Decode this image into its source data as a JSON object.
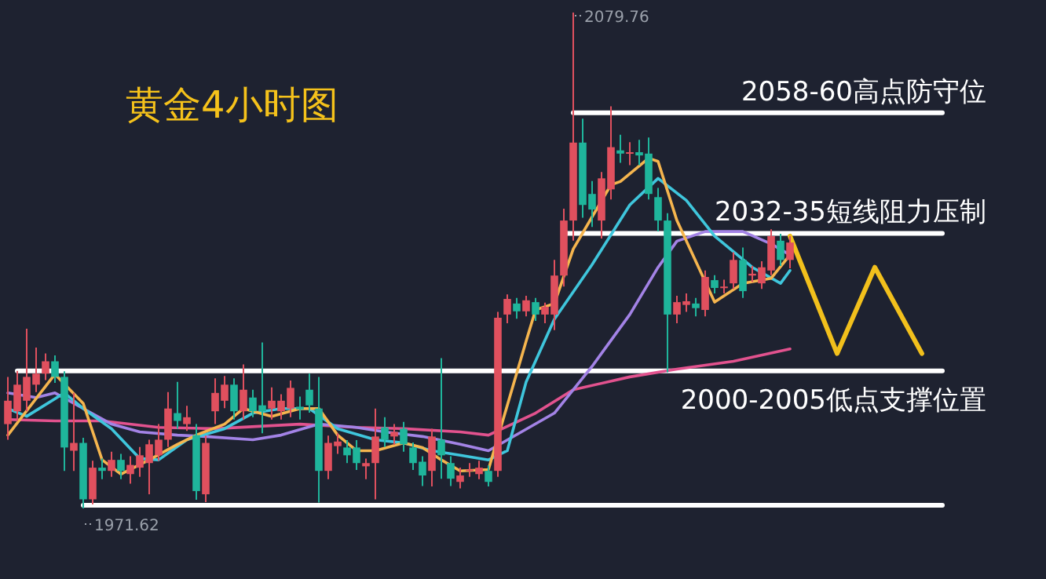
{
  "chart_data": {
    "type": "candlestick",
    "title": "黄金4小时图",
    "categories": [
      null,
      null,
      null,
      null,
      null,
      null,
      null,
      null,
      null,
      null,
      null,
      null,
      null,
      null,
      null,
      null,
      null,
      null,
      null,
      null,
      null,
      null,
      null,
      null,
      null,
      null,
      null,
      null,
      null,
      null,
      null,
      null,
      null,
      null,
      null,
      null,
      null,
      null,
      null,
      null,
      null,
      null,
      null,
      null,
      null,
      null,
      null,
      null,
      null,
      null,
      null,
      null,
      null,
      null,
      null,
      null,
      null,
      null,
      null,
      null,
      null,
      null,
      null,
      null,
      null,
      null,
      null,
      null,
      null,
      null,
      null,
      null,
      null,
      null,
      null,
      null,
      null,
      null,
      null,
      null,
      null,
      null,
      null,
      null,
      null,
      null,
      null,
      null,
      null,
      null,
      null,
      null,
      null,
      null,
      null,
      null,
      null,
      null
    ],
    "ohlc": [
      [
        1990.0,
        2000.3,
        1986.6,
        1995.1
      ],
      [
        1992.8,
        2001.6,
        1990.7,
        1998.6
      ],
      [
        1995.1,
        2010.8,
        1992.8,
        2000.3
      ],
      [
        1998.6,
        2006.7,
        1997.0,
        2001.0
      ],
      [
        2001.0,
        2005.4,
        1999.6,
        2003.7
      ],
      [
        2003.7,
        2005.0,
        1999.0,
        2000.3
      ],
      [
        2000.3,
        2001.5,
        1979.8,
        1984.9
      ],
      [
        1984.2,
        1996.8,
        1979.8,
        1985.9
      ],
      [
        1985.9,
        1987.0,
        1971.62,
        1973.6
      ],
      [
        1973.6,
        1982.0,
        1972.5,
        1980.5
      ],
      [
        1980.5,
        1982.5,
        1978.0,
        1979.8
      ],
      [
        1979.8,
        1984.0,
        1978.5,
        1982.2
      ],
      [
        1982.2,
        1983.5,
        1978.0,
        1979.8
      ],
      [
        1979.1,
        1983.0,
        1977.0,
        1981.1
      ],
      [
        1980.5,
        1985.0,
        1978.5,
        1983.2
      ],
      [
        1981.5,
        1986.6,
        1974.7,
        1985.6
      ],
      [
        1983.2,
        1990.0,
        1982.0,
        1986.6
      ],
      [
        1986.6,
        1997.0,
        1985.0,
        1993.4
      ],
      [
        1992.4,
        1999.2,
        1989.0,
        1990.7
      ],
      [
        1990.0,
        1994.0,
        1988.5,
        1991.5
      ],
      [
        1987.6,
        1990.0,
        1973.5,
        1975.4
      ],
      [
        1974.7,
        1987.5,
        1973.0,
        1985.9
      ],
      [
        1992.8,
        2000.0,
        1990.0,
        1996.8
      ],
      [
        1995.1,
        2000.5,
        1993.5,
        1998.6
      ],
      [
        1998.6,
        2000.0,
        1991.0,
        1992.8
      ],
      [
        1992.8,
        2003.0,
        1991.0,
        1997.5
      ],
      [
        1995.8,
        1997.5,
        1991.5,
        1992.8
      ],
      [
        1994.1,
        2007.8,
        1988.0,
        1992.8
      ],
      [
        1993.4,
        1998.0,
        1991.0,
        1995.1
      ],
      [
        1992.8,
        1996.5,
        1991.0,
        1995.1
      ],
      [
        1993.4,
        1999.5,
        1991.5,
        1997.9
      ],
      [
        1993.8,
        1996.0,
        1991.0,
        1993.2
      ],
      [
        1997.5,
        2001.0,
        1992.5,
        1994.1
      ],
      [
        1993.4,
        2000.3,
        1972.9,
        1979.8
      ],
      [
        1979.8,
        1987.5,
        1978.0,
        1985.9
      ],
      [
        1985.2,
        1988.0,
        1983.5,
        1986.2
      ],
      [
        1984.9,
        1986.5,
        1981.5,
        1983.2
      ],
      [
        1984.9,
        1986.5,
        1980.0,
        1981.5
      ],
      [
        1980.8,
        1982.5,
        1978.0,
        1981.5
      ],
      [
        1981.5,
        1993.4,
        1973.6,
        1987.3
      ],
      [
        1989.3,
        1991.5,
        1985.0,
        1986.6
      ],
      [
        1987.3,
        1990.0,
        1985.5,
        1988.3
      ],
      [
        1989.0,
        1990.5,
        1984.0,
        1985.6
      ],
      [
        1984.9,
        1986.0,
        1980.0,
        1981.5
      ],
      [
        1981.8,
        1983.0,
        1976.5,
        1978.8
      ],
      [
        1979.8,
        1989.0,
        1976.4,
        1987.3
      ],
      [
        1986.6,
        2004.4,
        1978.1,
        1983.2
      ],
      [
        1981.5,
        1983.0,
        1976.5,
        1978.1
      ],
      [
        1977.4,
        1980.5,
        1976.0,
        1978.8
      ],
      [
        1979.8,
        1981.5,
        1978.5,
        1980.1
      ],
      [
        1979.1,
        1982.0,
        1978.0,
        1980.5
      ],
      [
        1979.8,
        1981.0,
        1976.4,
        1977.4
      ],
      [
        1979.8,
        2014.5,
        1978.5,
        2013.2
      ],
      [
        2013.9,
        2018.3,
        2012.0,
        2017.3
      ],
      [
        2016.3,
        2017.5,
        2013.0,
        2014.6
      ],
      [
        2014.6,
        2018.0,
        2013.5,
        2017.0
      ],
      [
        2016.6,
        2017.5,
        2012.5,
        2013.9
      ],
      [
        2013.9,
        2016.5,
        2012.0,
        2015.6
      ],
      [
        2013.9,
        2025.8,
        2010.5,
        2022.4
      ],
      [
        2022.4,
        2037.0,
        2020.0,
        2034.4
      ],
      [
        2034.4,
        2079.76,
        2030.0,
        2051.4
      ],
      [
        2051.4,
        2056.6,
        2035.0,
        2037.8
      ],
      [
        2040.2,
        2043.0,
        2033.0,
        2036.8
      ],
      [
        2034.4,
        2045.0,
        2030.5,
        2043.6
      ],
      [
        2041.2,
        2059.3,
        2039.0,
        2050.4
      ],
      [
        2049.7,
        2053.1,
        2047.0,
        2049.0
      ],
      [
        2049.0,
        2051.5,
        2046.5,
        2049.3
      ],
      [
        2049.3,
        2052.0,
        2046.5,
        2048.6
      ],
      [
        2049.0,
        2052.5,
        2039.0,
        2040.2
      ],
      [
        2039.5,
        2041.5,
        2032.0,
        2034.4
      ],
      [
        2034.4,
        2036.0,
        2001.3,
        2013.9
      ],
      [
        2013.9,
        2018.0,
        2012.0,
        2016.6
      ],
      [
        2016.0,
        2018.5,
        2014.5,
        2016.8
      ],
      [
        2016.3,
        2017.5,
        2013.5,
        2015.3
      ],
      [
        2014.9,
        2023.5,
        2013.5,
        2022.1
      ],
      [
        2021.4,
        2022.5,
        2018.5,
        2019.7
      ],
      [
        2019.7,
        2021.5,
        2018.5,
        2020.0
      ],
      [
        2020.7,
        2027.5,
        2019.5,
        2025.8
      ],
      [
        2025.8,
        2028.5,
        2017.5,
        2019.0
      ],
      [
        2022.4,
        2024.5,
        2021.0,
        2022.8
      ],
      [
        2020.7,
        2025.5,
        2019.5,
        2024.2
      ],
      [
        2023.5,
        2032.5,
        2022.5,
        2031.0
      ],
      [
        2030.0,
        2031.5,
        2024.5,
        2025.8
      ],
      [
        2025.8,
        2031.0,
        2024.0,
        2029.6
      ],
      null,
      null,
      null,
      null,
      null,
      null,
      null,
      null,
      null,
      null,
      null,
      null,
      null,
      null
    ],
    "series": [
      {
        "type": "line",
        "color": "#e2528e",
        "values": [
          1991.0,
          null,
          null,
          null,
          null,
          1990.7,
          null,
          null,
          null,
          null,
          1990.7,
          null,
          null,
          null,
          null,
          null,
          1989.3,
          null,
          null,
          null,
          null,
          null,
          1989.0,
          null,
          null,
          null,
          null,
          null,
          null,
          null,
          null,
          1990.0,
          null,
          null,
          null,
          null,
          null,
          1989.3,
          null,
          null,
          null,
          null,
          1989.0,
          null,
          null,
          null,
          null,
          null,
          1988.3,
          null,
          null,
          1987.6,
          null,
          null,
          null,
          null,
          1992.4,
          null,
          null,
          null,
          1997.5,
          null,
          null,
          null,
          null,
          null,
          2000.3,
          null,
          null,
          null,
          null,
          2002.0,
          null,
          null,
          null,
          null,
          null,
          2003.7,
          null,
          null,
          null,
          null,
          null,
          2006.4,
          null,
          null,
          null,
          null,
          null,
          null,
          null,
          null,
          null,
          null,
          null,
          null,
          null,
          null
        ]
      },
      {
        "type": "line",
        "color": "#a383e6",
        "values": [
          1996.8,
          null,
          null,
          1995.8,
          null,
          1996.8,
          null,
          null,
          1993.4,
          null,
          null,
          1990.0,
          null,
          null,
          1988.3,
          null,
          null,
          null,
          1987.6,
          null,
          null,
          1987.3,
          null,
          null,
          null,
          null,
          1986.6,
          null,
          null,
          1987.6,
          null,
          null,
          null,
          1990.0,
          null,
          null,
          null,
          1989.3,
          null,
          null,
          1988.3,
          null,
          null,
          null,
          1987.3,
          null,
          null,
          null,
          1985.6,
          null,
          null,
          1984.2,
          null,
          null,
          null,
          null,
          null,
          null,
          1992.4,
          null,
          null,
          null,
          2002.6,
          null,
          null,
          null,
          2013.9,
          null,
          null,
          2024.2,
          null,
          2029.9,
          null,
          null,
          2032.0,
          null,
          null,
          null,
          2032.0,
          null,
          null,
          2029.3,
          null,
          2026.9,
          null,
          null,
          null,
          null,
          null,
          null,
          null,
          null,
          null,
          null,
          null,
          null,
          null,
          null
        ]
      },
      {
        "type": "line",
        "color": "#3fc6dc",
        "values": [
          1993.4,
          null,
          1991.7,
          null,
          null,
          null,
          1996.8,
          null,
          1993.4,
          null,
          null,
          1989.0,
          null,
          null,
          1982.5,
          null,
          1982.2,
          null,
          null,
          1986.6,
          null,
          null,
          null,
          1989.0,
          null,
          null,
          1992.4,
          null,
          null,
          1993.4,
          null,
          null,
          1993.4,
          null,
          null,
          1989.0,
          null,
          null,
          null,
          1986.6,
          null,
          null,
          1985.9,
          null,
          null,
          1984.2,
          null,
          null,
          1983.2,
          null,
          null,
          1982.2,
          null,
          1984.2,
          null,
          1999.2,
          null,
          null,
          2012.9,
          null,
          null,
          null,
          2024.8,
          null,
          null,
          null,
          2037.8,
          null,
          null,
          2043.6,
          null,
          null,
          2038.8,
          null,
          null,
          2031.0,
          null,
          null,
          null,
          2024.2,
          null,
          null,
          2020.7,
          2023.5,
          null,
          null,
          null,
          null,
          null,
          null,
          null,
          null,
          null,
          null,
          null,
          null,
          null,
          null
        ]
      },
      {
        "type": "line",
        "color": "#f5b54e",
        "values": [
          1987.6,
          null,
          null,
          null,
          null,
          2000.9,
          null,
          null,
          1994.5,
          null,
          1982.2,
          null,
          1979.1,
          null,
          null,
          1982.2,
          null,
          null,
          1985.6,
          null,
          1987.6,
          null,
          null,
          1990.0,
          null,
          1993.4,
          null,
          null,
          1991.7,
          null,
          null,
          1993.4,
          null,
          1993.4,
          null,
          1987.6,
          null,
          1984.2,
          null,
          1984.2,
          null,
          null,
          1985.9,
          null,
          1984.9,
          null,
          1982.2,
          null,
          1979.8,
          null,
          null,
          1980.1,
          null,
          null,
          null,
          2008.1,
          2014.9,
          null,
          2016.3,
          null,
          2028.2,
          null,
          null,
          null,
          2042.2,
          2042.9,
          null,
          null,
          2048.0,
          2047.3,
          null,
          2034.4,
          null,
          null,
          null,
          2016.6,
          null,
          null,
          2020.7,
          null,
          null,
          2021.8,
          null,
          2026.9,
          null,
          null,
          null,
          null,
          null,
          null,
          null,
          null,
          null,
          null,
          null,
          null,
          null,
          null
        ]
      },
      {
        "type": "line",
        "color": "#f2c01c",
        "values": [
          null,
          null,
          null,
          null,
          null,
          null,
          null,
          null,
          null,
          null,
          null,
          null,
          null,
          null,
          null,
          null,
          null,
          null,
          null,
          null,
          null,
          null,
          null,
          null,
          null,
          null,
          null,
          null,
          null,
          null,
          null,
          null,
          null,
          null,
          null,
          null,
          null,
          null,
          null,
          null,
          null,
          null,
          null,
          null,
          null,
          null,
          null,
          null,
          null,
          null,
          null,
          null,
          null,
          null,
          null,
          null,
          null,
          null,
          null,
          null,
          null,
          null,
          null,
          null,
          null,
          null,
          null,
          null,
          null,
          null,
          null,
          null,
          null,
          null,
          null,
          null,
          null,
          null,
          null,
          null,
          null,
          null,
          null,
          2031.0,
          null,
          null,
          null,
          null,
          2005.4,
          null,
          null,
          null,
          2024.2,
          null,
          null,
          null,
          null,
          2005.4
        ]
      }
    ],
    "ref_lines": [
      {
        "axis": "y",
        "value": 2057.9,
        "label": "2058-60高点防守位",
        "color": "#ffffff"
      },
      {
        "axis": "y",
        "value": 2031.6,
        "label": "2032-35短线阻力压制",
        "color": "#ffffff"
      },
      {
        "axis": "y",
        "value": 2001.6,
        "label": "2000-2005低点支撑位置",
        "color": "#ffffff"
      },
      {
        "axis": "y",
        "value": 1972.3,
        "color": "#ffffff"
      }
    ],
    "annotations": [
      "2079.76",
      {
        "text": "1971.62",
        "y": 1971.62
      }
    ]
  }
}
